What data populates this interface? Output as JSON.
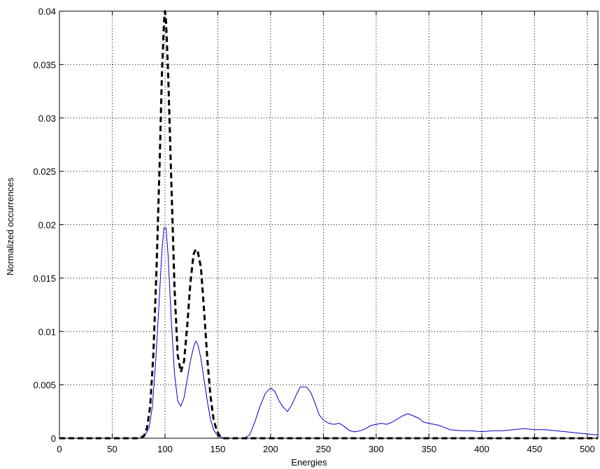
{
  "chart_data": {
    "type": "line",
    "title": "",
    "xlabel": "Energies",
    "ylabel": "Normalized occurrences",
    "xlim": [
      0,
      510
    ],
    "ylim": [
      0,
      0.04
    ],
    "grid": true,
    "xticks": [
      0,
      50,
      100,
      150,
      200,
      250,
      300,
      350,
      400,
      450,
      500
    ],
    "xtick_labels": [
      "0",
      "50",
      "100",
      "150",
      "200",
      "250",
      "300",
      "350",
      "400",
      "450",
      "500"
    ],
    "yticks": [
      0,
      0.005,
      0.01,
      0.015,
      0.02,
      0.025,
      0.03,
      0.035,
      0.04
    ],
    "ytick_labels": [
      "0",
      "0.005",
      "0.01",
      "0.015",
      "0.02",
      "0.025",
      "0.03",
      "0.035",
      "0.04"
    ],
    "colors": {
      "solid": "#0000cc",
      "dashed": "#000000"
    },
    "series": [
      {
        "style": "solid",
        "color": "#0000cc",
        "points": [
          [
            0,
            0
          ],
          [
            75,
            0
          ],
          [
            80,
            0.0001
          ],
          [
            85,
            0.001
          ],
          [
            88,
            0.003
          ],
          [
            91,
            0.007
          ],
          [
            94,
            0.012
          ],
          [
            97,
            0.0175
          ],
          [
            99,
            0.0197
          ],
          [
            101,
            0.0197
          ],
          [
            103,
            0.017
          ],
          [
            106,
            0.011
          ],
          [
            109,
            0.006
          ],
          [
            112,
            0.0035
          ],
          [
            115,
            0.003
          ],
          [
            118,
            0.0038
          ],
          [
            121,
            0.0055
          ],
          [
            124,
            0.0072
          ],
          [
            127,
            0.0085
          ],
          [
            129,
            0.0091
          ],
          [
            131,
            0.0088
          ],
          [
            134,
            0.0075
          ],
          [
            137,
            0.0055
          ],
          [
            140,
            0.0035
          ],
          [
            143,
            0.0018
          ],
          [
            146,
            0.0008
          ],
          [
            150,
            0.0002
          ],
          [
            155,
            5e-05
          ],
          [
            165,
            0
          ],
          [
            175,
            0
          ],
          [
            180,
            0.0003
          ],
          [
            185,
            0.0015
          ],
          [
            190,
            0.003
          ],
          [
            195,
            0.0042
          ],
          [
            200,
            0.0047
          ],
          [
            204,
            0.0044
          ],
          [
            208,
            0.0035
          ],
          [
            212,
            0.0029
          ],
          [
            216,
            0.0025
          ],
          [
            220,
            0.0031
          ],
          [
            224,
            0.004
          ],
          [
            228,
            0.0048
          ],
          [
            234,
            0.0048
          ],
          [
            238,
            0.0043
          ],
          [
            242,
            0.0033
          ],
          [
            246,
            0.0022
          ],
          [
            250,
            0.0017
          ],
          [
            255,
            0.0014
          ],
          [
            260,
            0.0013
          ],
          [
            265,
            0.0014
          ],
          [
            270,
            0.0011
          ],
          [
            275,
            0.0007
          ],
          [
            280,
            0.0006
          ],
          [
            285,
            0.0007
          ],
          [
            290,
            0.0009
          ],
          [
            295,
            0.0012
          ],
          [
            300,
            0.0013
          ],
          [
            305,
            0.0014
          ],
          [
            310,
            0.0013
          ],
          [
            315,
            0.0015
          ],
          [
            320,
            0.0018
          ],
          [
            325,
            0.0021
          ],
          [
            330,
            0.0023
          ],
          [
            335,
            0.0021
          ],
          [
            340,
            0.0019
          ],
          [
            345,
            0.0015
          ],
          [
            350,
            0.0014
          ],
          [
            360,
            0.0012
          ],
          [
            370,
            0.0008
          ],
          [
            380,
            0.0007
          ],
          [
            390,
            0.0007
          ],
          [
            400,
            0.0006
          ],
          [
            410,
            0.0007
          ],
          [
            420,
            0.0007
          ],
          [
            430,
            0.0008
          ],
          [
            440,
            0.0009
          ],
          [
            450,
            0.0008
          ],
          [
            460,
            0.0008
          ],
          [
            470,
            0.0007
          ],
          [
            480,
            0.0006
          ],
          [
            490,
            0.0005
          ],
          [
            500,
            0.0004
          ],
          [
            510,
            0.0003
          ]
        ]
      },
      {
        "style": "dashed",
        "color": "#000000",
        "points": [
          [
            0,
            0
          ],
          [
            75,
            0
          ],
          [
            80,
            0.0002
          ],
          [
            83,
            0.001
          ],
          [
            86,
            0.003
          ],
          [
            89,
            0.008
          ],
          [
            92,
            0.016
          ],
          [
            95,
            0.026
          ],
          [
            97,
            0.034
          ],
          [
            99,
            0.039
          ],
          [
            100,
            0.0405
          ],
          [
            101,
            0.039
          ],
          [
            103,
            0.034
          ],
          [
            106,
            0.024
          ],
          [
            109,
            0.014
          ],
          [
            112,
            0.0078
          ],
          [
            115,
            0.0062
          ],
          [
            118,
            0.0072
          ],
          [
            121,
            0.0105
          ],
          [
            124,
            0.0145
          ],
          [
            127,
            0.0172
          ],
          [
            129,
            0.0177
          ],
          [
            131,
            0.0175
          ],
          [
            134,
            0.016
          ],
          [
            137,
            0.012
          ],
          [
            140,
            0.0075
          ],
          [
            143,
            0.004
          ],
          [
            146,
            0.0018
          ],
          [
            149,
            0.0007
          ],
          [
            152,
            0.0002
          ],
          [
            156,
            0
          ],
          [
            510,
            0
          ]
        ]
      }
    ]
  }
}
